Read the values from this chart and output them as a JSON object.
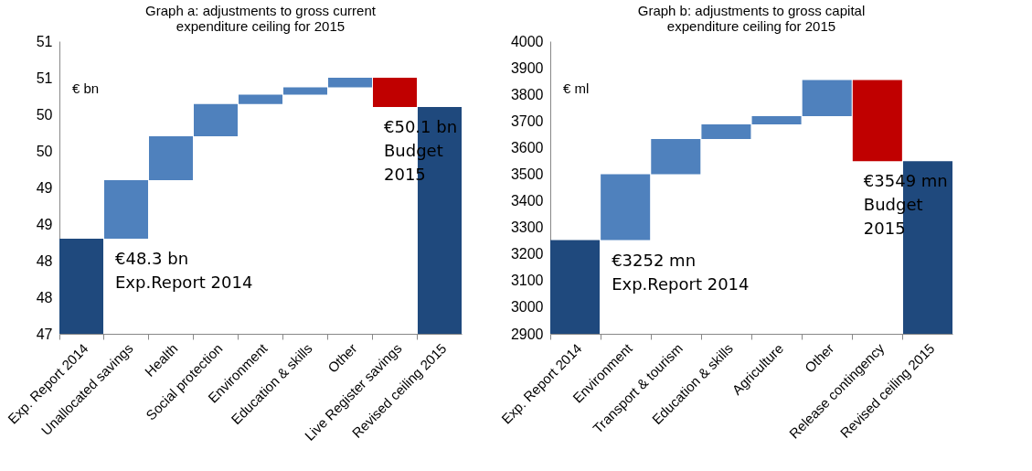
{
  "chart_data": [
    {
      "type": "bar",
      "title": "Graph a: adjustments to gross current\nexpenditure ceiling for 2015",
      "categories": [
        "Exp. Report 2014",
        "Unallocated savings",
        "Health",
        "Social protection",
        "Environment",
        "Education & skills",
        "Other",
        "Live Register savings",
        "Revised ceiling 2015"
      ],
      "base": [
        47,
        48.3,
        49.1,
        49.7,
        50.14,
        50.27,
        50.37,
        50.5,
        47
      ],
      "values": [
        1.3,
        0.8,
        0.6,
        0.44,
        0.13,
        0.1,
        0.13,
        -0.4,
        3.1
      ],
      "colors": [
        "#1f497d",
        "#4f81bd",
        "#4f81bd",
        "#4f81bd",
        "#4f81bd",
        "#4f81bd",
        "#4f81bd",
        "#c00000",
        "#1f497d"
      ],
      "ylim": [
        47,
        51
      ],
      "yticks": [
        47,
        {
          "value": 47.5,
          "label": "48"
        },
        48,
        {
          "value": 48.5,
          "label": "49"
        },
        49,
        {
          "value": 49.5,
          "label": "50"
        },
        50,
        {
          "value": 50.5,
          "label": "51"
        },
        51
      ],
      "grid": false,
      "annotations": [
        "€ bn",
        {
          "text": "€48.3 bn\nExp.Report 2014",
          "x": "Unallocated savings",
          "y": 48.3
        },
        {
          "text": "€50.1 bn\nBudget\n2015",
          "x": "Live Register savings",
          "y": 50.1
        }
      ]
    },
    {
      "type": "bar",
      "title": "Graph b: adjustments to gross capital\nexpenditure ceiling for 2015",
      "categories": [
        "Exp. Report 2014",
        "Environment",
        "Transport & tourism",
        "Education & skills",
        "Agriculture",
        "Other",
        "Release contingency",
        "Revised ceiling 2015"
      ],
      "base": [
        2900,
        3252,
        3500,
        3632,
        3687,
        3718,
        3854,
        2900
      ],
      "values": [
        352,
        248,
        132,
        55,
        31,
        136,
        -305,
        649
      ],
      "colors": [
        "#1f497d",
        "#4f81bd",
        "#4f81bd",
        "#4f81bd",
        "#4f81bd",
        "#4f81bd",
        "#c00000",
        "#1f497d"
      ],
      "ylim": [
        2900,
        4000
      ],
      "yticks": [
        2900,
        3000,
        3100,
        3200,
        3300,
        3400,
        3500,
        3600,
        3700,
        3800,
        3900,
        4000
      ],
      "grid": false,
      "annotations": [
        "€ ml",
        {
          "text": "€3252 mn\nExp.Report 2014",
          "x": "Environment",
          "y": 3252
        },
        {
          "text": "€3549 mn\nBudget\n2015",
          "x": "Release contingency",
          "y": 3549
        }
      ]
    }
  ]
}
